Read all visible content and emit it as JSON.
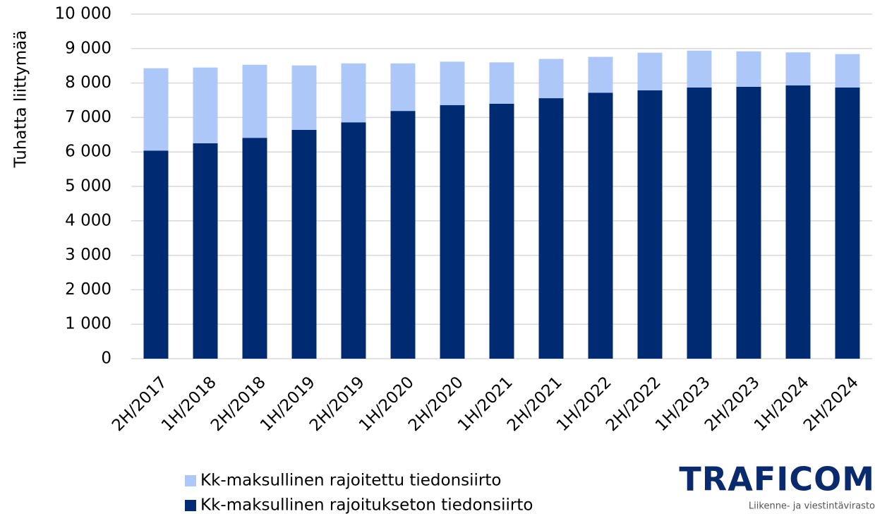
{
  "chart_data": {
    "type": "stacked_bar",
    "y_label": "Tuhatta liittymää",
    "categories": [
      "2H/2017",
      "1H/2018",
      "2H/2018",
      "1H/2019",
      "2H/2019",
      "1H/2020",
      "2H/2020",
      "1H/2021",
      "2H/2021",
      "1H/2022",
      "2H/2022",
      "1H/2023",
      "2H/2023",
      "1H/2024",
      "2H/2024"
    ],
    "series": [
      {
        "name": "Kk-maksullinen rajoitukseton tiedonsiirto",
        "color": "#002b73",
        "values": [
          6040,
          6250,
          6410,
          6640,
          6860,
          7190,
          7360,
          7400,
          7560,
          7720,
          7790,
          7870,
          7890,
          7930,
          7870
        ]
      },
      {
        "name": "Kk-maksullinen rajoitettu tiedonsiirto",
        "color": "#adc8f8",
        "values": [
          2390,
          2200,
          2120,
          1870,
          1710,
          1380,
          1260,
          1200,
          1140,
          1040,
          1090,
          1070,
          1030,
          960,
          970
        ]
      }
    ],
    "ylim": [
      0,
      10000
    ],
    "yticks": [
      0,
      {
        "value": 1000,
        "label": "1 000"
      },
      {
        "value": 2000,
        "label": "2 000"
      },
      {
        "value": 3000,
        "label": "3 000"
      },
      {
        "value": 4000,
        "label": "4 000"
      },
      {
        "value": 5000,
        "label": "5 000"
      },
      {
        "value": 6000,
        "label": "6 000"
      },
      {
        "value": 7000,
        "label": "7 000"
      },
      {
        "value": 8000,
        "label": "8 000"
      },
      {
        "value": 9000,
        "label": "9 000"
      },
      {
        "value": 10000,
        "label": "10 000"
      }
    ],
    "grid": true,
    "legend": "bottom"
  },
  "logo": {
    "name": "TRAFICOM",
    "subtitle": "Liikenne- ja viestintävirasto"
  }
}
